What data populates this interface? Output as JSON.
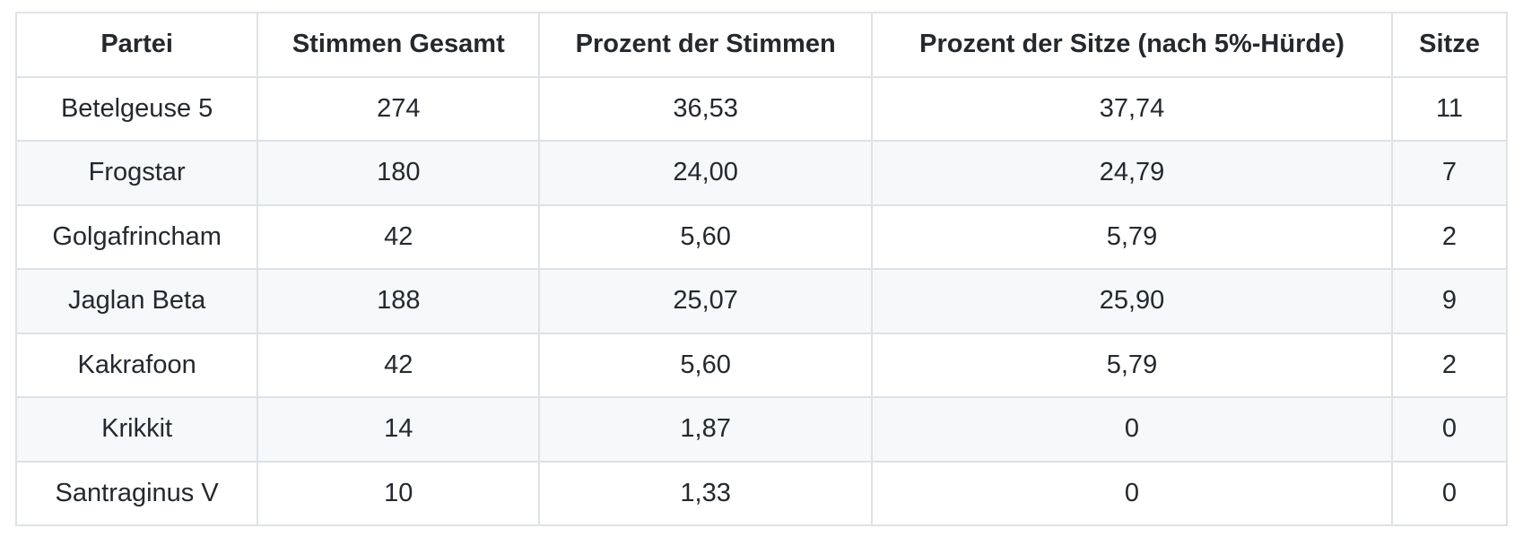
{
  "table": {
    "headers": [
      "Partei",
      "Stimmen Gesamt",
      "Prozent der Stimmen",
      "Prozent der Sitze (nach 5%-Hürde)",
      "Sitze"
    ],
    "rows": [
      [
        "Betelgeuse 5",
        "274",
        "36,53",
        "37,74",
        "11"
      ],
      [
        "Frogstar",
        "180",
        "24,00",
        "24,79",
        "7"
      ],
      [
        "Golgafrincham",
        "42",
        "5,60",
        "5,79",
        "2"
      ],
      [
        "Jaglan Beta",
        "188",
        "25,07",
        "25,90",
        "9"
      ],
      [
        "Kakrafoon",
        "42",
        "5,60",
        "5,79",
        "2"
      ],
      [
        "Krikkit",
        "14",
        "1,87",
        "0",
        "0"
      ],
      [
        "Santraginus V",
        "10",
        "1,33",
        "0",
        "0"
      ]
    ],
    "colors": {
      "stripe": "#f6f8fa",
      "border": "#dfe2e5",
      "text": "#24292e",
      "header_bg": "#ffffff"
    }
  }
}
